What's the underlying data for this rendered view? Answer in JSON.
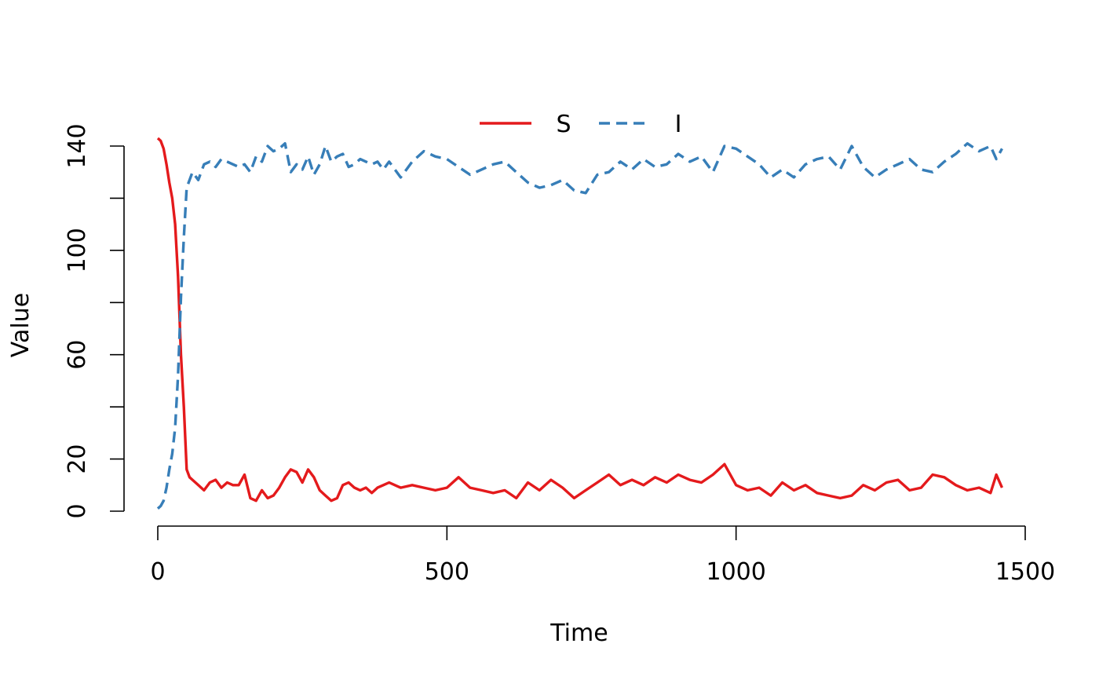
{
  "chart_data": {
    "type": "line",
    "title": "",
    "xlabel": "Time",
    "ylabel": "Value",
    "xlim": [
      0,
      1500
    ],
    "ylim": [
      0,
      140
    ],
    "xticks": [
      0,
      500,
      1000,
      1500
    ],
    "xtick_labels": [
      "0",
      "500",
      "1000",
      "1500"
    ],
    "yticks": [
      0,
      20,
      40,
      60,
      80,
      100,
      120,
      140
    ],
    "ytick_labels": [
      "0",
      "20",
      "",
      "60",
      "",
      "100",
      "",
      "140"
    ],
    "grid": false,
    "legend_position": "top",
    "series": [
      {
        "name": "S",
        "color": "#e41a1c",
        "line_style": "solid",
        "x": [
          0,
          5,
          10,
          15,
          20,
          25,
          30,
          35,
          40,
          45,
          50,
          55,
          60,
          70,
          80,
          90,
          100,
          110,
          120,
          130,
          140,
          150,
          160,
          170,
          180,
          190,
          200,
          210,
          220,
          230,
          240,
          250,
          260,
          270,
          280,
          290,
          300,
          310,
          320,
          330,
          340,
          350,
          360,
          370,
          380,
          390,
          400,
          420,
          440,
          460,
          480,
          500,
          520,
          540,
          560,
          580,
          600,
          620,
          640,
          660,
          680,
          700,
          720,
          740,
          760,
          780,
          800,
          820,
          840,
          860,
          880,
          900,
          920,
          940,
          960,
          980,
          1000,
          1020,
          1040,
          1060,
          1080,
          1100,
          1120,
          1140,
          1160,
          1180,
          1200,
          1220,
          1240,
          1260,
          1280,
          1300,
          1320,
          1340,
          1360,
          1380,
          1400,
          1420,
          1440,
          1450,
          1460
        ],
        "values": [
          143,
          142,
          139,
          133,
          126,
          120,
          110,
          90,
          60,
          40,
          16,
          13,
          12,
          10,
          8,
          11,
          12,
          9,
          11,
          10,
          10,
          14,
          5,
          4,
          8,
          5,
          6,
          9,
          13,
          16,
          15,
          11,
          16,
          13,
          8,
          6,
          4,
          5,
          10,
          11,
          9,
          8,
          9,
          7,
          9,
          10,
          11,
          9,
          10,
          9,
          8,
          9,
          13,
          9,
          8,
          7,
          8,
          5,
          11,
          8,
          12,
          9,
          5,
          8,
          11,
          14,
          10,
          12,
          10,
          13,
          11,
          14,
          12,
          11,
          14,
          18,
          10,
          8,
          9,
          6,
          11,
          8,
          10,
          7,
          6,
          5,
          6,
          10,
          8,
          11,
          12,
          8,
          9,
          14,
          13,
          10,
          8,
          9,
          7,
          14,
          9
        ]
      },
      {
        "name": "I",
        "color": "#377eb8",
        "line_style": "dashed",
        "x": [
          0,
          5,
          10,
          15,
          20,
          25,
          30,
          35,
          40,
          45,
          50,
          55,
          60,
          70,
          80,
          90,
          100,
          110,
          120,
          130,
          140,
          150,
          160,
          170,
          180,
          190,
          200,
          210,
          220,
          230,
          240,
          250,
          260,
          270,
          280,
          290,
          300,
          310,
          320,
          330,
          340,
          350,
          360,
          370,
          380,
          390,
          400,
          420,
          440,
          460,
          480,
          500,
          520,
          540,
          560,
          580,
          600,
          620,
          640,
          660,
          680,
          700,
          720,
          740,
          760,
          780,
          800,
          820,
          840,
          860,
          880,
          900,
          920,
          940,
          960,
          980,
          1000,
          1020,
          1040,
          1060,
          1080,
          1100,
          1120,
          1140,
          1160,
          1180,
          1200,
          1220,
          1240,
          1260,
          1280,
          1300,
          1320,
          1340,
          1360,
          1380,
          1400,
          1420,
          1440,
          1450,
          1460
        ],
        "values": [
          1,
          2,
          4,
          9,
          16,
          22,
          32,
          52,
          82,
          105,
          124,
          127,
          130,
          127,
          133,
          134,
          132,
          135,
          134,
          133,
          132,
          133,
          130,
          136,
          134,
          140,
          138,
          139,
          141,
          130,
          133,
          131,
          136,
          129,
          133,
          140,
          134,
          136,
          137,
          132,
          133,
          135,
          134,
          133,
          134,
          131,
          134,
          128,
          134,
          138,
          136,
          135,
          132,
          129,
          131,
          133,
          134,
          130,
          126,
          124,
          125,
          127,
          123,
          122,
          129,
          130,
          134,
          131,
          135,
          132,
          133,
          137,
          134,
          136,
          130,
          140,
          139,
          136,
          133,
          128,
          131,
          128,
          133,
          135,
          136,
          131,
          140,
          132,
          128,
          131,
          133,
          135,
          131,
          130,
          134,
          137,
          141,
          138,
          140,
          135,
          139
        ]
      }
    ]
  }
}
